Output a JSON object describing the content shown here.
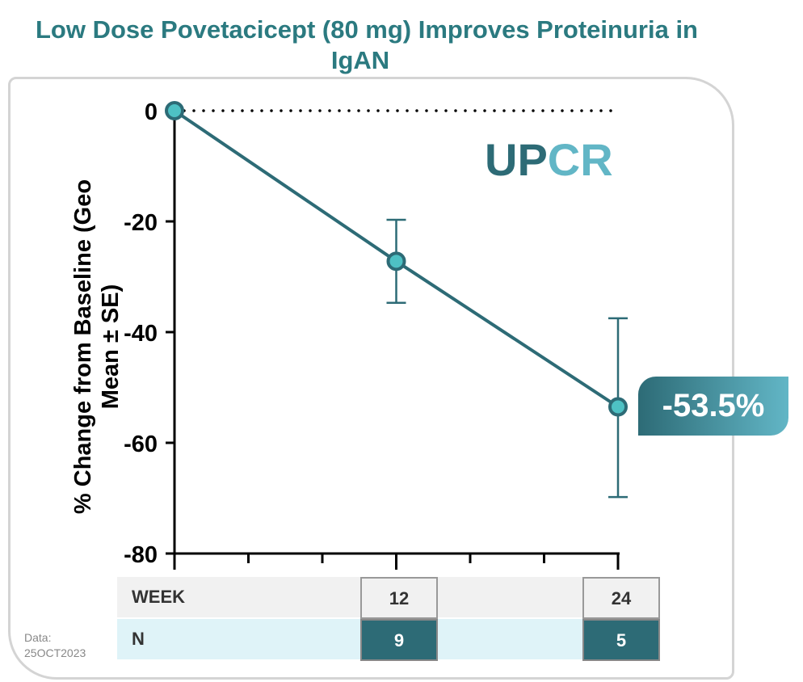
{
  "chart_data": {
    "type": "line",
    "title": "Low Dose Povetacicept (80 mg) Improves Proteinuria in IgAN",
    "ylabel": "% Change from Baseline (Geo Mean ± SE)",
    "xlabel": "WEEK",
    "ylim": [
      -80,
      0
    ],
    "yticks": [
      "0",
      "-20",
      "-40",
      "-60",
      "-80"
    ],
    "xlim": [
      0,
      24
    ],
    "x": [
      0,
      12,
      24
    ],
    "values": [
      0,
      -27.2,
      -53.5
    ],
    "error_low": [
      0,
      -34.7,
      -69.8
    ],
    "error_high": [
      0,
      -19.7,
      -37.5
    ],
    "reference_line": 0,
    "annotation": "-53.5%",
    "series_label": {
      "part1": "UP",
      "part2": "CR"
    },
    "colors": {
      "line": "#2d6b76",
      "marker": "#4ec1c4",
      "accent": "#62b6c6"
    }
  },
  "table": {
    "week_label": "WEEK",
    "n_label": "N",
    "weeks": [
      "12",
      "24"
    ],
    "n": [
      "9",
      "5"
    ]
  },
  "note": {
    "line1": "Data:",
    "line2": "25OCT2023"
  }
}
